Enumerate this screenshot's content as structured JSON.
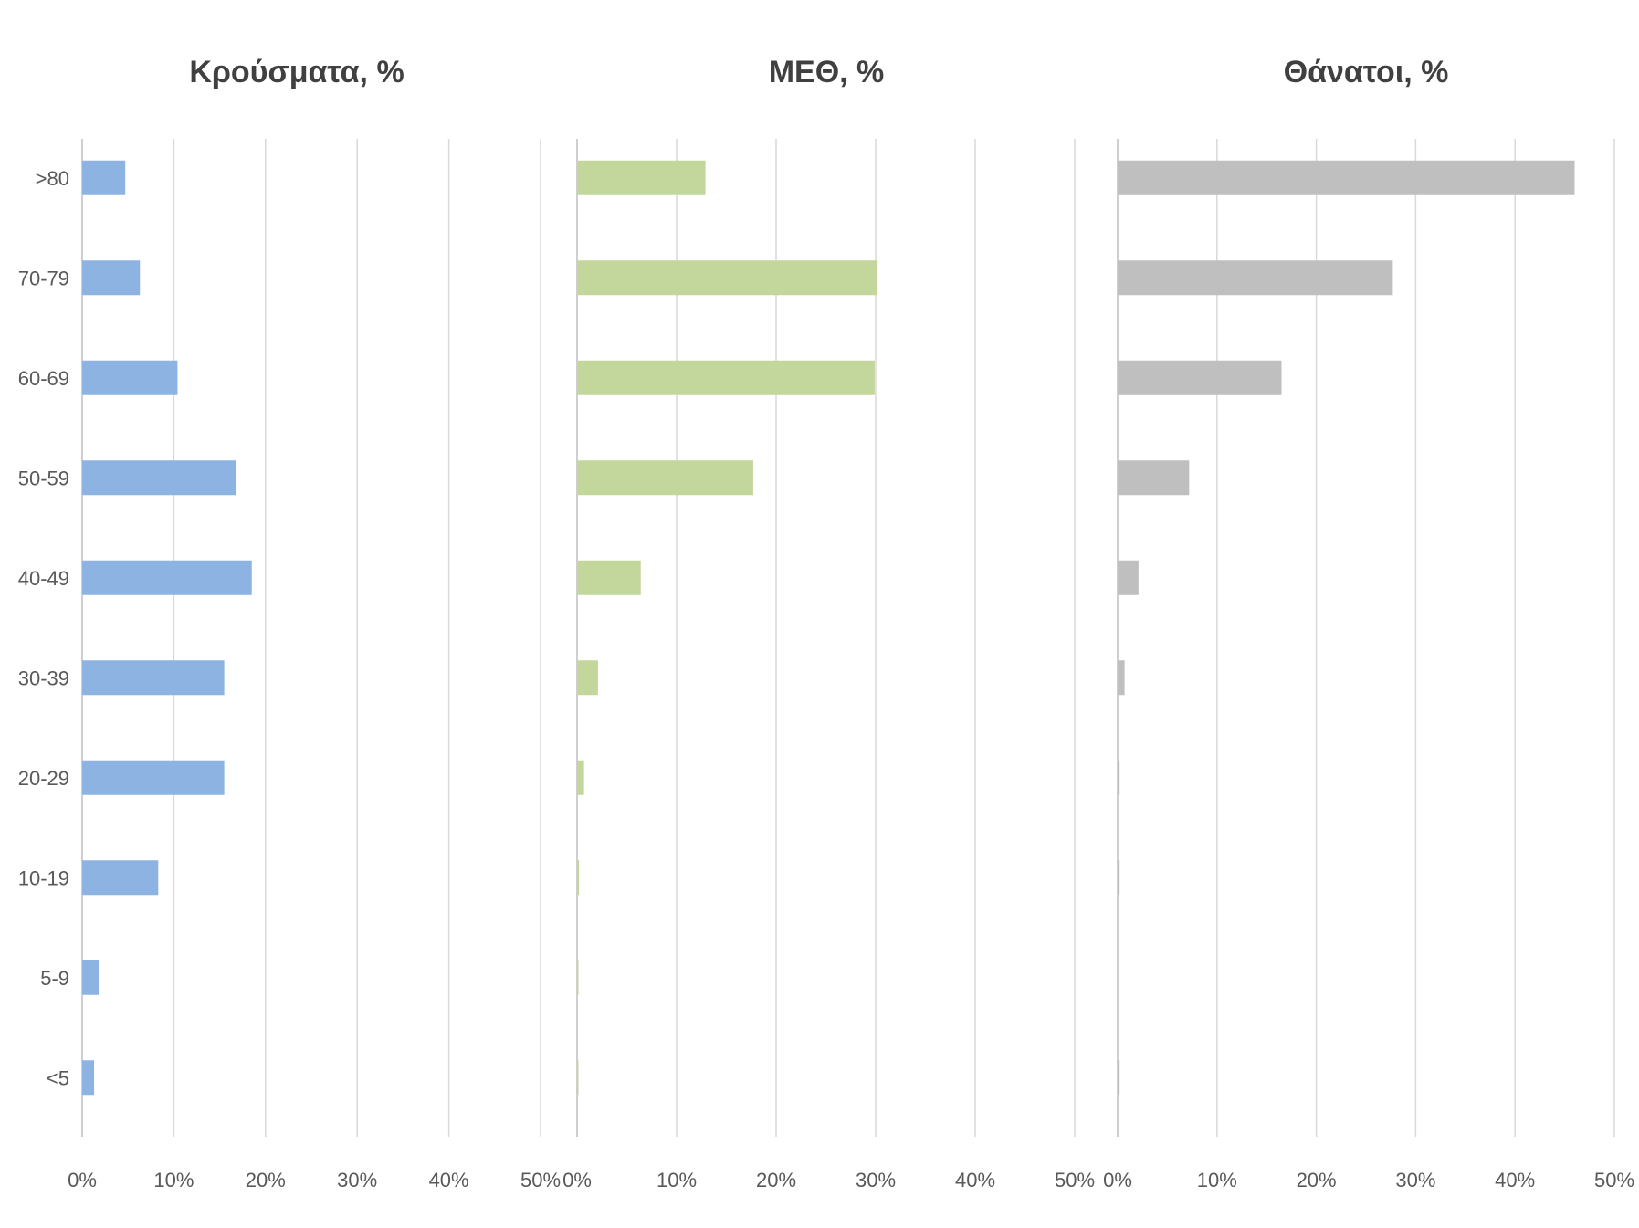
{
  "chart_data": [
    {
      "type": "bar",
      "orientation": "horizontal",
      "title": "Κρούσματα, %",
      "categories": [
        ">80",
        "70-79",
        "60-69",
        "50-59",
        "40-49",
        "30-39",
        "20-29",
        "10-19",
        "5-9",
        "<5"
      ],
      "values": [
        4.7,
        6.3,
        10.4,
        16.8,
        18.5,
        15.5,
        15.5,
        8.3,
        1.8,
        1.3
      ],
      "xlim": [
        0,
        50
      ],
      "xticks": [
        "0%",
        "10%",
        "20%",
        "30%",
        "40%",
        "50%"
      ],
      "grid": true,
      "color": "#8db3e2"
    },
    {
      "type": "bar",
      "orientation": "horizontal",
      "title": "ΜΕΘ, %",
      "categories": [
        ">80",
        "70-79",
        "60-69",
        "50-59",
        "40-49",
        "30-39",
        "20-29",
        "10-19",
        "5-9",
        "<5"
      ],
      "values": [
        12.9,
        30.2,
        29.9,
        17.7,
        6.4,
        2.1,
        0.7,
        0.2,
        0.05,
        0.05
      ],
      "xlim": [
        0,
        50
      ],
      "xticks": [
        "0%",
        "10%",
        "20%",
        "30%",
        "40%",
        "50%"
      ],
      "grid": true,
      "color": "#c3d69b"
    },
    {
      "type": "bar",
      "orientation": "horizontal",
      "title": "Θάνατοι, %",
      "categories": [
        ">80",
        "70-79",
        "60-69",
        "50-59",
        "40-49",
        "30-39",
        "20-29",
        "10-19",
        "5-9",
        "<5"
      ],
      "values": [
        46.0,
        27.7,
        16.5,
        7.2,
        2.1,
        0.7,
        0.2,
        0.2,
        0.0,
        0.2
      ],
      "xlim": [
        0,
        50
      ],
      "xticks": [
        "0%",
        "10%",
        "20%",
        "30%",
        "40%",
        "50%"
      ],
      "grid": true,
      "color": "#bfbfbf"
    }
  ]
}
